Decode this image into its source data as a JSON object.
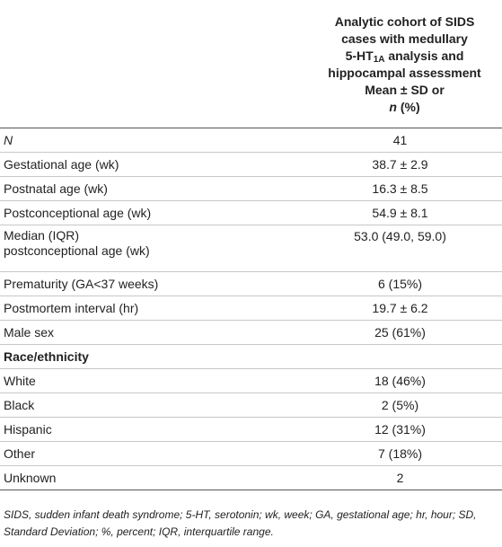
{
  "header": {
    "line1": "Analytic cohort of SIDS",
    "line2": "cases with medullary",
    "line3_pre": "5-HT",
    "line3_sub": "1A",
    "line3_post": " analysis and",
    "line4": "hippocampal assessment",
    "line5": "Mean ± SD or",
    "line6_n": "n",
    "line6_rest": " (%)"
  },
  "rows": [
    {
      "label": "N",
      "value": "41"
    },
    {
      "label": "Gestational age (wk)",
      "value": "38.7 ± 2.9"
    },
    {
      "label": "Postnatal age (wk)",
      "value": "16.3 ± 8.5"
    },
    {
      "label": "Postconceptional age (wk)",
      "value": "54.9 ± 8.1"
    },
    {
      "label_line1": "Median (IQR)",
      "label_line2": "postconceptional age (wk)",
      "value": "53.0 (49.0, 59.0)"
    },
    {
      "label": "Prematurity (GA<37 weeks)",
      "value": "6 (15%)"
    },
    {
      "label": "Postmortem interval (hr)",
      "value": "19.7 ± 6.2"
    },
    {
      "label": "Male sex",
      "value": "25 (61%)"
    },
    {
      "label": "Race/ethnicity",
      "value": ""
    },
    {
      "label": "White",
      "value": "18 (46%)"
    },
    {
      "label": "Black",
      "value": "2 (5%)"
    },
    {
      "label": "Hispanic",
      "value": "12 (31%)"
    },
    {
      "label": "Other",
      "value": "7 (18%)"
    },
    {
      "label": "Unknown",
      "value": "2"
    }
  ],
  "footnote": "SIDS, sudden infant death syndrome; 5-HT, serotonin; wk, week; GA, gestational age; hr, hour; SD, Standard Deviation; %, percent; IQR, interquartile range."
}
